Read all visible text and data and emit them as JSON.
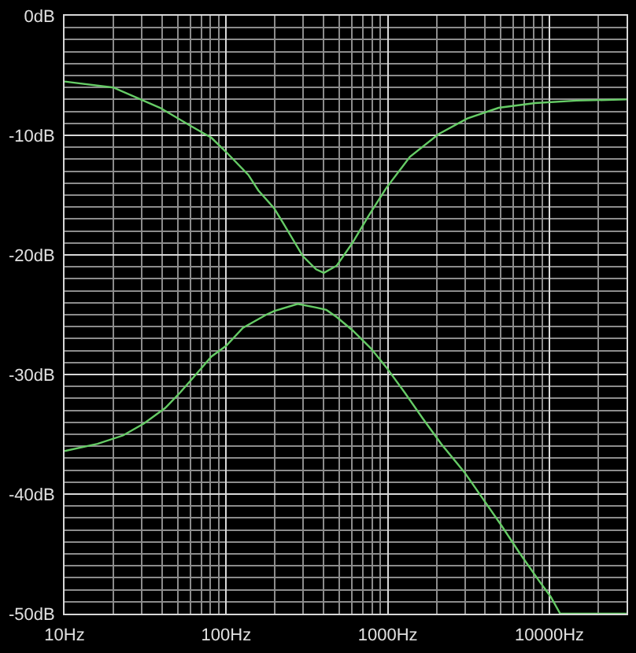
{
  "chart_data": {
    "type": "line",
    "log": "x",
    "grid": true,
    "xlim": [
      10,
      30000
    ],
    "xticks": [
      {
        "value": 10,
        "label": "10Hz"
      },
      {
        "value": 20,
        "label": null
      },
      {
        "value": 30,
        "label": null
      },
      {
        "value": 40,
        "label": null
      },
      {
        "value": 50,
        "label": null
      },
      {
        "value": 60,
        "label": null
      },
      {
        "value": 70,
        "label": null
      },
      {
        "value": 80,
        "label": null
      },
      {
        "value": 90,
        "label": null
      },
      {
        "value": 100,
        "label": "100Hz"
      },
      {
        "value": 200,
        "label": null
      },
      {
        "value": 300,
        "label": null
      },
      {
        "value": 400,
        "label": null
      },
      {
        "value": 500,
        "label": null
      },
      {
        "value": 600,
        "label": null
      },
      {
        "value": 700,
        "label": null
      },
      {
        "value": 800,
        "label": null
      },
      {
        "value": 900,
        "label": null
      },
      {
        "value": 1000,
        "label": "1000Hz"
      },
      {
        "value": 2000,
        "label": null
      },
      {
        "value": 3000,
        "label": null
      },
      {
        "value": 4000,
        "label": null
      },
      {
        "value": 5000,
        "label": null
      },
      {
        "value": 6000,
        "label": null
      },
      {
        "value": 7000,
        "label": null
      },
      {
        "value": 8000,
        "label": null
      },
      {
        "value": 9000,
        "label": null
      },
      {
        "value": 10000,
        "label": "10000Hz"
      },
      {
        "value": 20000,
        "label": null
      },
      {
        "value": 30000,
        "label": null
      }
    ],
    "ylim": [
      -50,
      0
    ],
    "yticks": [
      {
        "value": 0,
        "label": "0dB"
      },
      {
        "value": -1,
        "label": null
      },
      {
        "value": -2,
        "label": null
      },
      {
        "value": -3,
        "label": null
      },
      {
        "value": -4,
        "label": null
      },
      {
        "value": -5,
        "label": null
      },
      {
        "value": -6,
        "label": null
      },
      {
        "value": -7,
        "label": null
      },
      {
        "value": -8,
        "label": null
      },
      {
        "value": -9,
        "label": null
      },
      {
        "value": -10,
        "label": "-10dB"
      },
      {
        "value": -11,
        "label": null
      },
      {
        "value": -12,
        "label": null
      },
      {
        "value": -13,
        "label": null
      },
      {
        "value": -14,
        "label": null
      },
      {
        "value": -15,
        "label": null
      },
      {
        "value": -16,
        "label": null
      },
      {
        "value": -17,
        "label": null
      },
      {
        "value": -18,
        "label": null
      },
      {
        "value": -19,
        "label": null
      },
      {
        "value": -20,
        "label": "-20dB"
      },
      {
        "value": -21,
        "label": null
      },
      {
        "value": -22,
        "label": null
      },
      {
        "value": -23,
        "label": null
      },
      {
        "value": -24,
        "label": null
      },
      {
        "value": -25,
        "label": null
      },
      {
        "value": -26,
        "label": null
      },
      {
        "value": -27,
        "label": null
      },
      {
        "value": -28,
        "label": null
      },
      {
        "value": -29,
        "label": null
      },
      {
        "value": -30,
        "label": "-30dB"
      },
      {
        "value": -31,
        "label": null
      },
      {
        "value": -32,
        "label": null
      },
      {
        "value": -33,
        "label": null
      },
      {
        "value": -34,
        "label": null
      },
      {
        "value": -35,
        "label": null
      },
      {
        "value": -36,
        "label": null
      },
      {
        "value": -37,
        "label": null
      },
      {
        "value": -38,
        "label": null
      },
      {
        "value": -39,
        "label": null
      },
      {
        "value": -40,
        "label": "-40dB"
      },
      {
        "value": -41,
        "label": null
      },
      {
        "value": -42,
        "label": null
      },
      {
        "value": -43,
        "label": null
      },
      {
        "value": -44,
        "label": null
      },
      {
        "value": -45,
        "label": null
      },
      {
        "value": -46,
        "label": null
      },
      {
        "value": -47,
        "label": null
      },
      {
        "value": -48,
        "label": null
      },
      {
        "value": -49,
        "label": null
      },
      {
        "value": -50,
        "label": "-50dB"
      }
    ],
    "series": [
      {
        "color": "#66cc66",
        "x": [
          10,
          20,
          39,
          60,
          81,
          100,
          137,
          158,
          198,
          222,
          298,
          360,
          402,
          483,
          604,
          755,
          979,
          1370,
          2060,
          3100,
          4850,
          8140,
          14750,
          30000
        ],
        "values": [
          -5.5,
          -6.0,
          -7.7,
          -9.2,
          -10.2,
          -11.4,
          -13.3,
          -14.6,
          -16.1,
          -17.2,
          -20.1,
          -21.2,
          -21.5,
          -20.9,
          -19.0,
          -16.8,
          -14.4,
          -11.8,
          -9.9,
          -8.6,
          -7.7,
          -7.3,
          -7.1,
          -7.0
        ]
      },
      {
        "color": "#66cc66",
        "x": [
          10,
          16,
          23,
          31,
          42,
          52,
          65,
          81,
          100,
          127,
          177,
          198,
          277,
          360,
          417,
          483,
          604,
          784,
          979,
          1270,
          1650,
          2140,
          2990,
          3880,
          5030,
          6520,
          8460,
          10200,
          11650,
          30000
        ],
        "values": [
          -36.4,
          -35.8,
          -35.1,
          -34.1,
          -32.8,
          -31.5,
          -30.0,
          -28.5,
          -27.6,
          -26.1,
          -25.0,
          -24.7,
          -24.1,
          -24.4,
          -24.6,
          -25.2,
          -26.3,
          -27.8,
          -29.4,
          -31.5,
          -33.7,
          -35.8,
          -38.2,
          -40.4,
          -42.6,
          -44.9,
          -47.1,
          -48.6,
          -50,
          -50
        ]
      }
    ]
  }
}
